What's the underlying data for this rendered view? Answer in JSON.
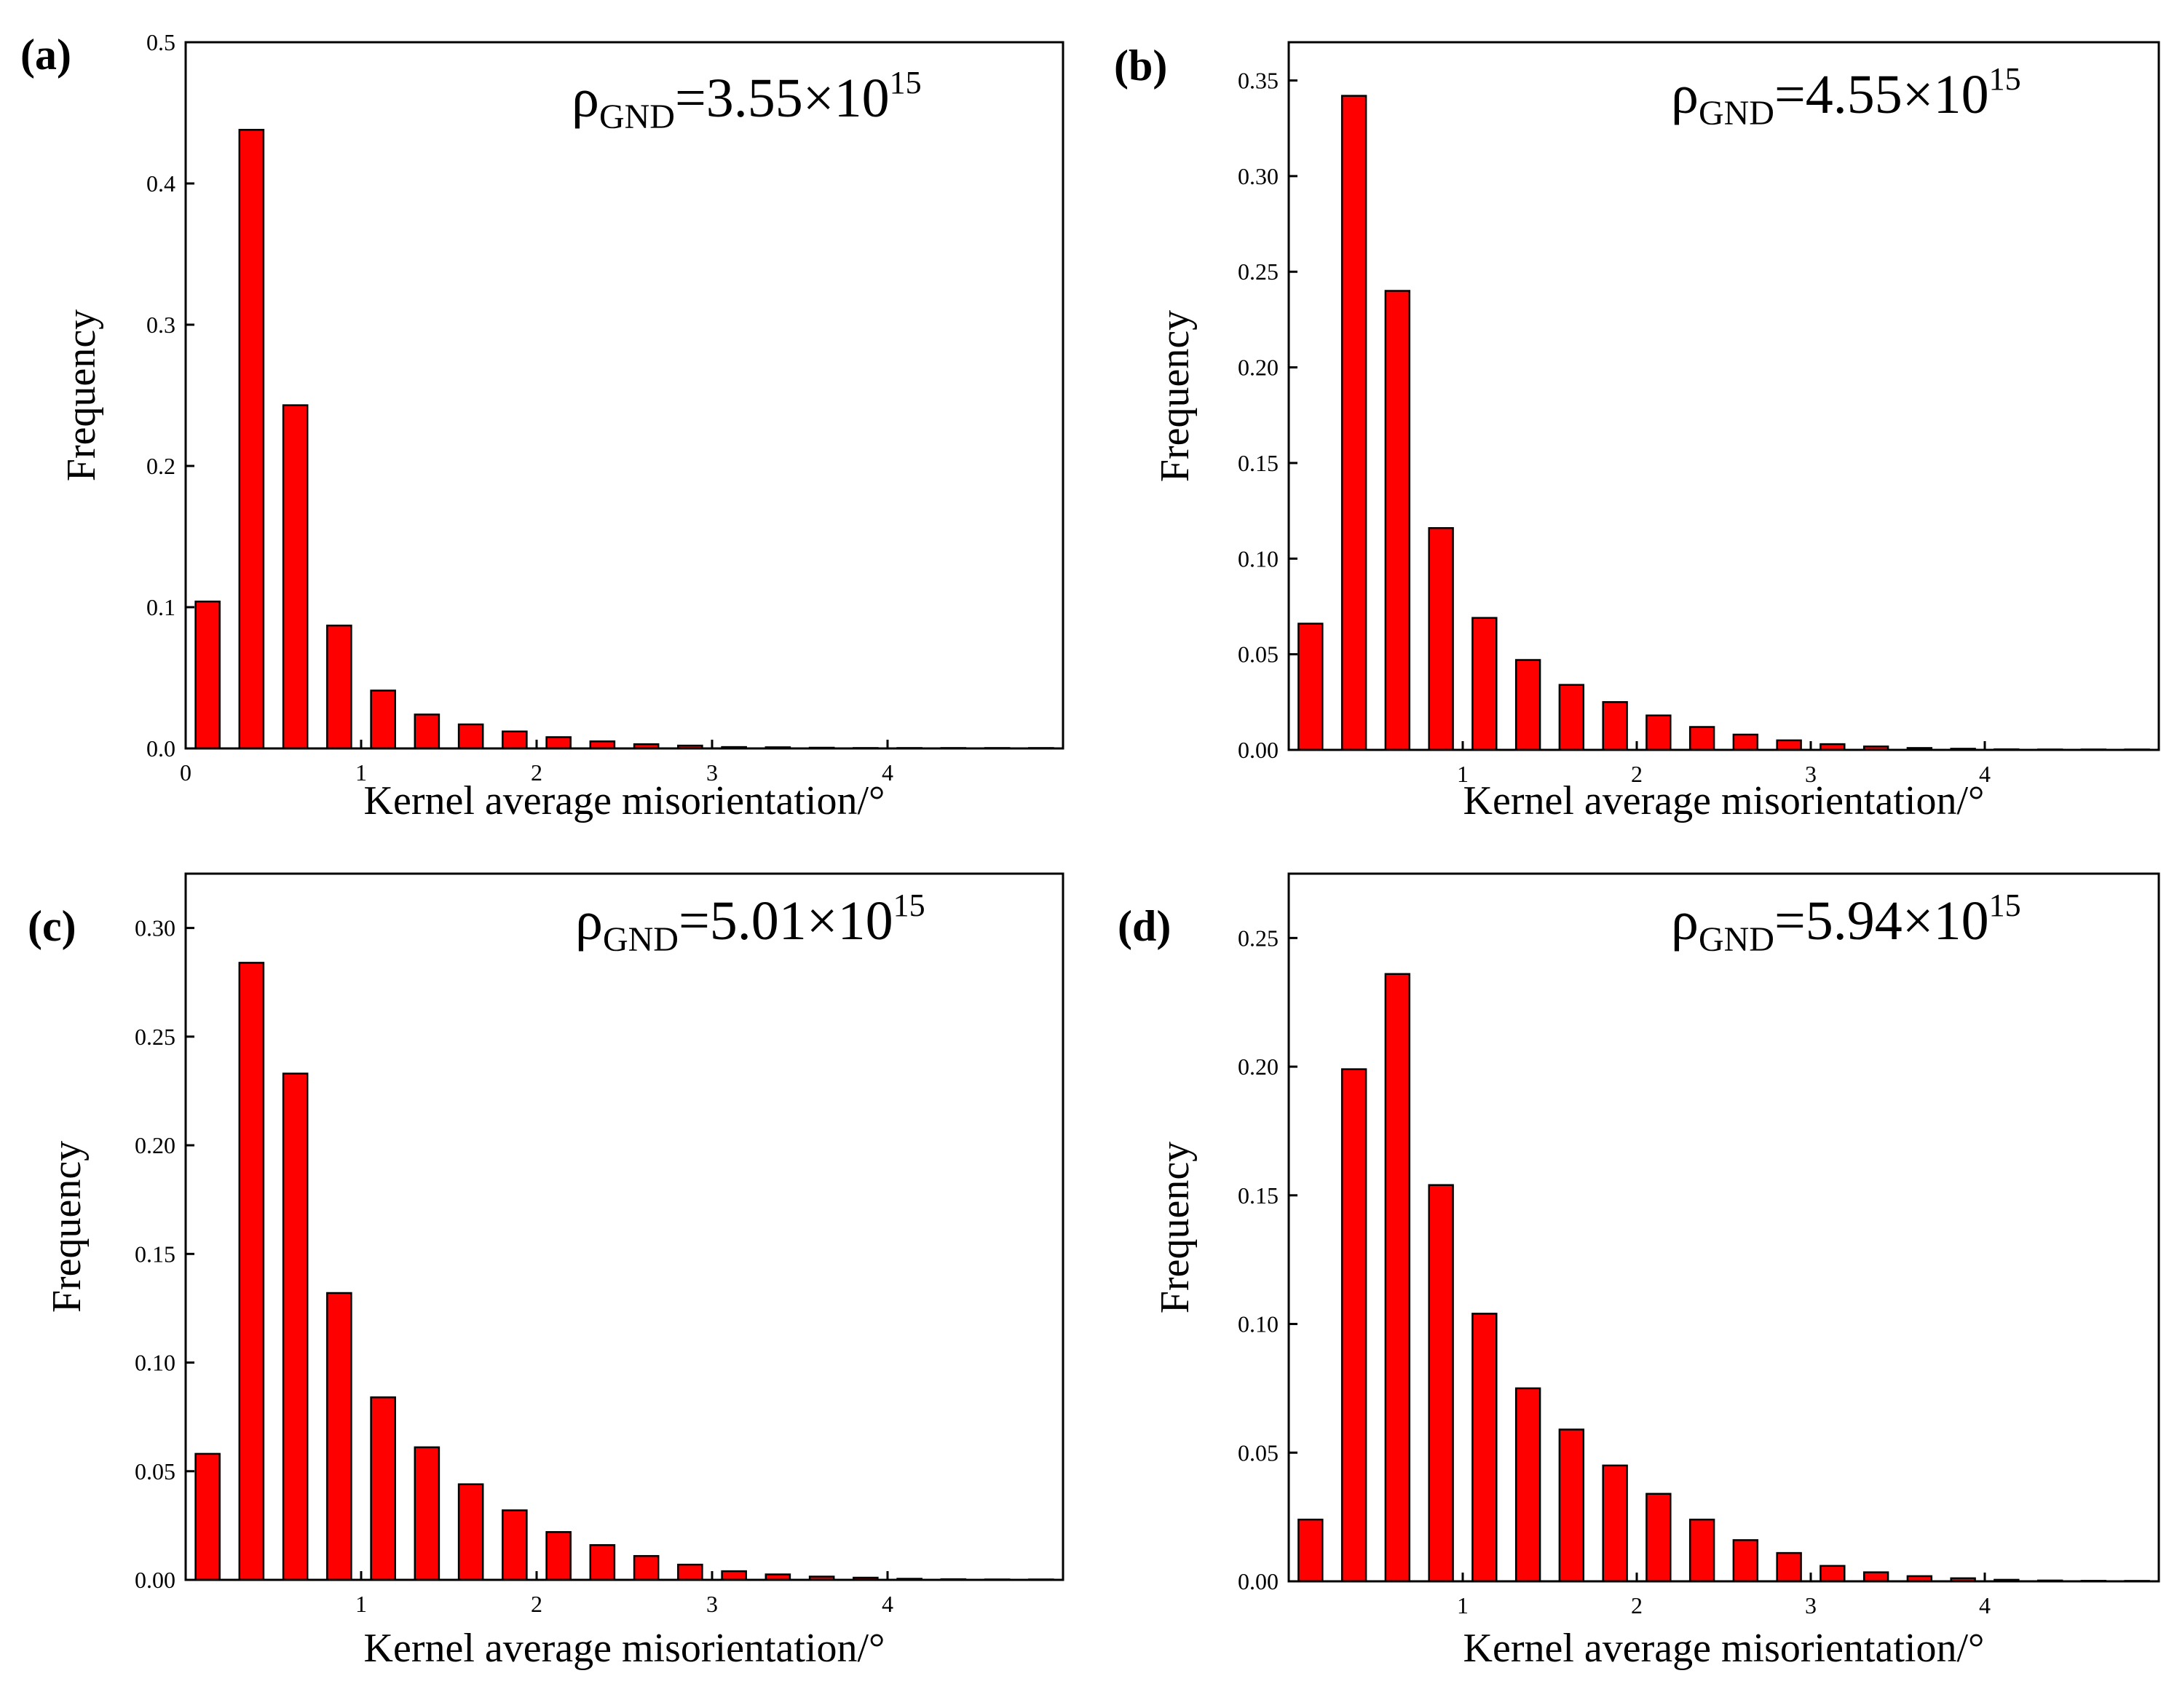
{
  "chart_data": [
    {
      "type": "bar",
      "panel_label": "(a)",
      "annotation": {
        "symbol": "ρ",
        "subscript": "GND",
        "mantissa": "=3.55×10",
        "exponent": "15"
      },
      "xlabel": "Kernel average misorientation/°",
      "ylabel": "Frequency",
      "xlim": [
        0,
        5
      ],
      "ylim": [
        0,
        0.5
      ],
      "xticks": [
        "0",
        "1",
        "2",
        "3",
        "4"
      ],
      "xtick_values": [
        0,
        1,
        2,
        3,
        4
      ],
      "yticks": [
        "0.0",
        "0.1",
        "0.2",
        "0.3",
        "0.4",
        "0.5"
      ],
      "ytick_values": [
        0.0,
        0.1,
        0.2,
        0.3,
        0.4,
        0.5
      ],
      "bin_width": 0.25,
      "x": [
        0.125,
        0.375,
        0.625,
        0.875,
        1.125,
        1.375,
        1.625,
        1.875,
        2.125,
        2.375,
        2.625,
        2.875,
        3.125,
        3.375,
        3.625,
        3.875,
        4.125,
        4.375,
        4.625,
        4.875
      ],
      "values": [
        0.104,
        0.438,
        0.243,
        0.087,
        0.041,
        0.024,
        0.017,
        0.012,
        0.008,
        0.005,
        0.003,
        0.002,
        0.001,
        0.0008,
        0.0005,
        0.0003,
        0.0002,
        0.0001,
        0.0001,
        0.0001
      ]
    },
    {
      "type": "bar",
      "panel_label": "(b)",
      "annotation": {
        "symbol": "ρ",
        "subscript": "GND",
        "mantissa": "=4.55×10",
        "exponent": "15"
      },
      "xlabel": "Kernel average misorientation/°",
      "ylabel": "Frequency",
      "xlim": [
        0,
        5
      ],
      "ylim": [
        0,
        0.37
      ],
      "xticks": [
        "1",
        "2",
        "3",
        "4"
      ],
      "xtick_values": [
        1,
        2,
        3,
        4
      ],
      "yticks": [
        "0.00",
        "0.05",
        "0.10",
        "0.15",
        "0.20",
        "0.25",
        "0.30",
        "0.35"
      ],
      "ytick_values": [
        0.0,
        0.05,
        0.1,
        0.15,
        0.2,
        0.25,
        0.3,
        0.35
      ],
      "bin_width": 0.25,
      "x": [
        0.125,
        0.375,
        0.625,
        0.875,
        1.125,
        1.375,
        1.625,
        1.875,
        2.125,
        2.375,
        2.625,
        2.875,
        3.125,
        3.375,
        3.625,
        3.875,
        4.125,
        4.375,
        4.625,
        4.875
      ],
      "values": [
        0.066,
        0.342,
        0.24,
        0.116,
        0.069,
        0.047,
        0.034,
        0.025,
        0.018,
        0.012,
        0.008,
        0.005,
        0.003,
        0.0018,
        0.001,
        0.0006,
        0.0003,
        0.0002,
        0.0001,
        0.0001
      ]
    },
    {
      "type": "bar",
      "panel_label": "(c)",
      "annotation": {
        "symbol": "ρ",
        "subscript": "GND",
        "mantissa": "=5.01×10",
        "exponent": "15"
      },
      "xlabel": "Kernel average misorientation/°",
      "ylabel": "Frequency",
      "xlim": [
        0,
        5
      ],
      "ylim": [
        0,
        0.325
      ],
      "xticks": [
        "1",
        "2",
        "3",
        "4"
      ],
      "xtick_values": [
        1,
        2,
        3,
        4
      ],
      "yticks": [
        "0.00",
        "0.05",
        "0.10",
        "0.15",
        "0.20",
        "0.25",
        "0.30"
      ],
      "ytick_values": [
        0.0,
        0.05,
        0.1,
        0.15,
        0.2,
        0.25,
        0.3
      ],
      "bin_width": 0.25,
      "x": [
        0.125,
        0.375,
        0.625,
        0.875,
        1.125,
        1.375,
        1.625,
        1.875,
        2.125,
        2.375,
        2.625,
        2.875,
        3.125,
        3.375,
        3.625,
        3.875,
        4.125,
        4.375,
        4.625,
        4.875
      ],
      "values": [
        0.058,
        0.284,
        0.233,
        0.132,
        0.084,
        0.061,
        0.044,
        0.032,
        0.022,
        0.016,
        0.011,
        0.007,
        0.004,
        0.0025,
        0.0015,
        0.001,
        0.0005,
        0.0003,
        0.0002,
        0.0001
      ]
    },
    {
      "type": "bar",
      "panel_label": "(d)",
      "annotation": {
        "symbol": "ρ",
        "subscript": "GND",
        "mantissa": "=5.94×10",
        "exponent": "15"
      },
      "xlabel": "Kernel average misorientation/°",
      "ylabel": "Frequency",
      "xlim": [
        0,
        5
      ],
      "ylim": [
        0,
        0.275
      ],
      "xticks": [
        "1",
        "2",
        "3",
        "4"
      ],
      "xtick_values": [
        1,
        2,
        3,
        4
      ],
      "yticks": [
        "0.00",
        "0.05",
        "0.10",
        "0.15",
        "0.20",
        "0.25"
      ],
      "ytick_values": [
        0.0,
        0.05,
        0.1,
        0.15,
        0.2,
        0.25
      ],
      "bin_width": 0.25,
      "x": [
        0.125,
        0.375,
        0.625,
        0.875,
        1.125,
        1.375,
        1.625,
        1.875,
        2.125,
        2.375,
        2.625,
        2.875,
        3.125,
        3.375,
        3.625,
        3.875,
        4.125,
        4.375,
        4.625,
        4.875
      ],
      "values": [
        0.024,
        0.199,
        0.236,
        0.154,
        0.104,
        0.075,
        0.059,
        0.045,
        0.034,
        0.024,
        0.016,
        0.011,
        0.006,
        0.0035,
        0.002,
        0.0012,
        0.0006,
        0.0003,
        0.0002,
        0.0001
      ]
    }
  ]
}
